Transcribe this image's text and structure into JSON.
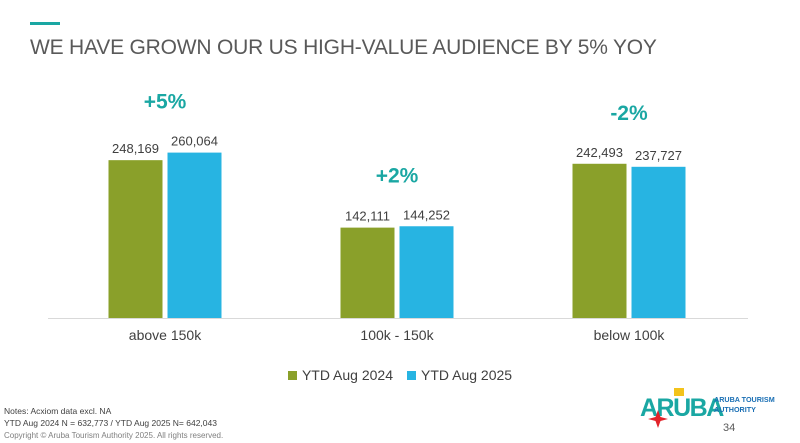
{
  "title": "WE HAVE GROWN OUR US HIGH-VALUE AUDIENCE BY 5% YOY",
  "chart_data": {
    "type": "bar",
    "categories": [
      "above 150k",
      "100k - 150k",
      "below 100k"
    ],
    "series": [
      {
        "name": "YTD Aug 2024",
        "values": [
          248169,
          142111,
          242493
        ],
        "labels": [
          "248,169",
          "142,111",
          "242,493"
        ],
        "color": "#8aa02a"
      },
      {
        "name": "YTD Aug 2025",
        "values": [
          260064,
          144252,
          237727
        ],
        "labels": [
          "260,064",
          "144,252",
          "237,727"
        ],
        "color": "#27b4e2"
      }
    ],
    "annotations": [
      "+5%",
      "+2%",
      "-2%"
    ],
    "annotation_color": "#1aa7a3",
    "ylim": [
      0,
      300000
    ],
    "grid": false,
    "legend_position": "bottom"
  },
  "notes": {
    "line1": "Notes: Acxiom data excl. NA",
    "line2": "YTD Aug 2024 N = 632,773 / YTD Aug 2025 N= 642,043"
  },
  "copyright": "Copyright © Aruba Tourism Authority 2025. All rights reserved.",
  "page_number": "34",
  "logo": {
    "wordmark": "ARUBA",
    "line1": "ARUBA TOURISM",
    "line2": "AUTHORITY"
  }
}
